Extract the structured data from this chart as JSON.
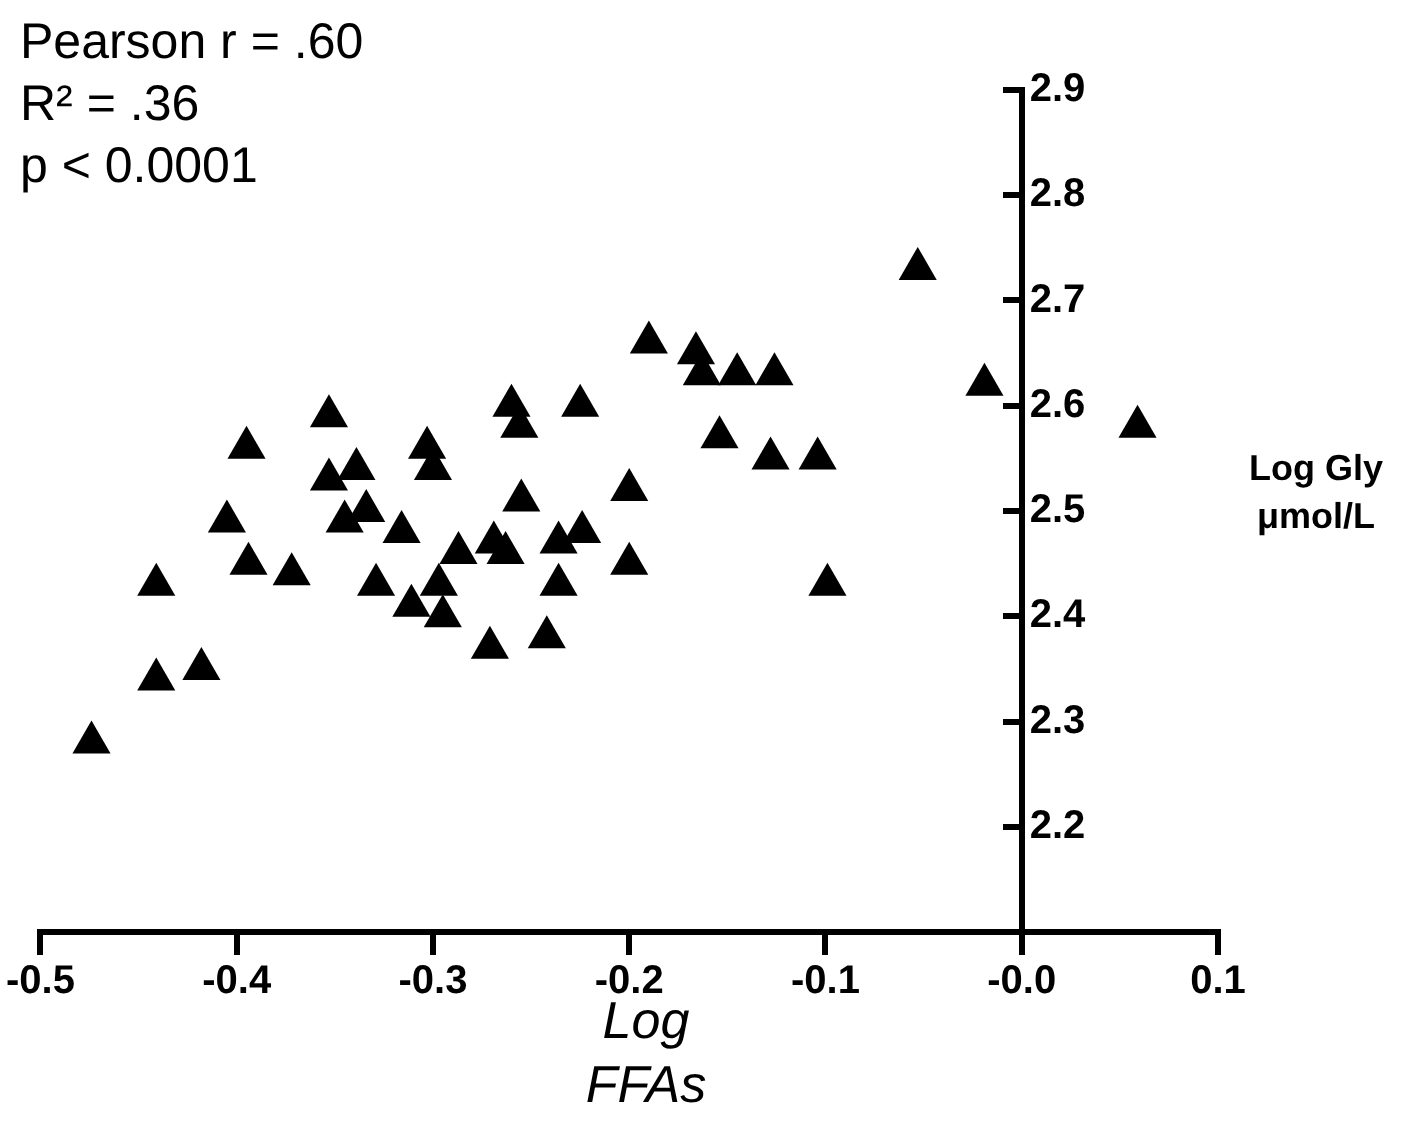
{
  "chart_data": {
    "type": "scatter",
    "xlabel": "Log\nFFAs",
    "ylabel": "Log Gly\nμmol/L",
    "annotations": [
      "Pearson r = .60",
      "R² = .36",
      "p < 0.0001"
    ],
    "xlim": [
      -0.5,
      0.1
    ],
    "ylim": [
      2.1,
      2.9
    ],
    "xticks": [
      -0.5,
      -0.4,
      -0.3,
      -0.2,
      -0.1,
      {
        "value": 0,
        "label": "-0.0"
      },
      0.1
    ],
    "yticks": [
      2.2,
      2.3,
      2.4,
      2.5,
      2.6,
      2.7,
      2.8,
      2.9
    ],
    "marker": "triangle",
    "grid": false,
    "legend": false,
    "series": [
      {
        "color": "#000000",
        "x": [
          -0.474,
          -0.441,
          -0.418,
          -0.441,
          -0.405,
          -0.395,
          -0.394,
          -0.372,
          -0.353,
          -0.353,
          -0.339,
          -0.345,
          -0.334,
          -0.316,
          -0.329,
          -0.311,
          -0.303,
          -0.3,
          -0.287,
          -0.297,
          -0.295,
          -0.271,
          -0.269,
          -0.263,
          -0.26,
          -0.256,
          -0.255,
          -0.225,
          -0.236,
          -0.224,
          -0.236,
          -0.242,
          -0.2,
          -0.2,
          -0.19,
          -0.166,
          -0.163,
          -0.145,
          -0.126,
          -0.154,
          -0.128,
          -0.104,
          -0.099,
          -0.019,
          -0.053,
          0.059
        ],
        "values": [
          2.28,
          2.34,
          2.35,
          2.43,
          2.49,
          2.56,
          2.45,
          2.44,
          2.59,
          2.53,
          2.54,
          2.49,
          2.5,
          2.48,
          2.43,
          2.41,
          2.56,
          2.54,
          2.46,
          2.43,
          2.4,
          2.37,
          2.47,
          2.46,
          2.6,
          2.58,
          2.51,
          2.6,
          2.47,
          2.48,
          2.43,
          2.38,
          2.52,
          2.45,
          2.66,
          2.65,
          2.63,
          2.63,
          2.63,
          2.57,
          2.55,
          2.55,
          2.43,
          2.62,
          2.73,
          2.58
        ]
      }
    ]
  }
}
